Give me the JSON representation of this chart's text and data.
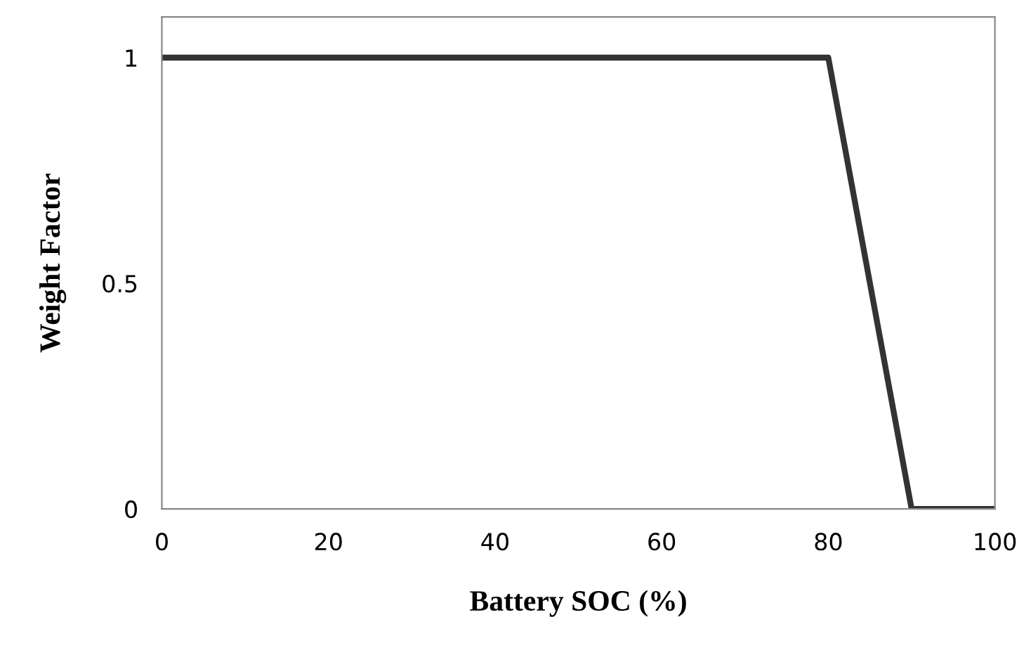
{
  "chart_data": {
    "type": "line",
    "xlabel": "Battery SOC (%)",
    "ylabel": "Weight Factor",
    "x": [
      0,
      80,
      90,
      100
    ],
    "series": [
      {
        "color": "#333333",
        "values": [
          1,
          1,
          0,
          0
        ]
      }
    ],
    "xlim": [
      0,
      100
    ],
    "xticks": [
      0,
      20,
      40,
      60,
      80,
      100
    ],
    "ylim": [
      0,
      1.09
    ],
    "yticks": [
      0,
      0.5,
      1
    ],
    "grid": false,
    "legend": false,
    "marker": "none",
    "line_style": "solid"
  }
}
